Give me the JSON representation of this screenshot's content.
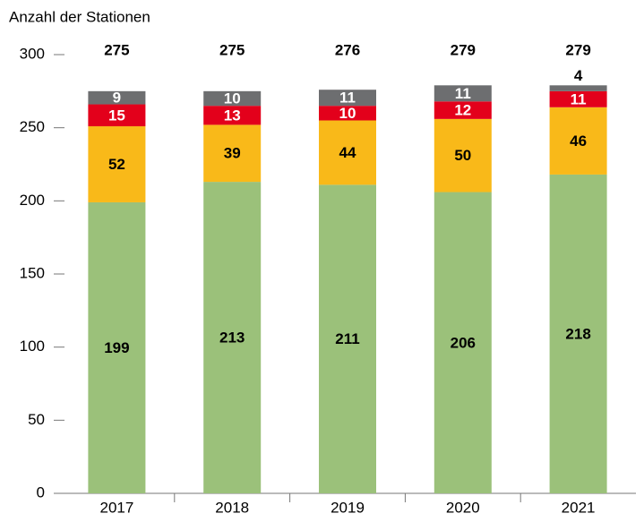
{
  "chart_data": {
    "type": "stacked_bar",
    "y_axis_label": "Anzahl der Stationen",
    "categories": [
      "2017",
      "2018",
      "2019",
      "2020",
      "2021"
    ],
    "series": [
      {
        "color": "#9bc17a",
        "label_color": "#000000",
        "values": [
          199,
          213,
          211,
          206,
          218
        ]
      },
      {
        "color": "#f9b919",
        "label_color": "#000000",
        "values": [
          52,
          39,
          44,
          50,
          46
        ]
      },
      {
        "color": "#e3001b",
        "label_color": "#ffffff",
        "values": [
          15,
          13,
          10,
          12,
          11
        ]
      },
      {
        "color": "#6d6e70",
        "label_color": "#ffffff",
        "values": [
          9,
          10,
          11,
          11,
          4
        ]
      }
    ],
    "totals": [
      275,
      275,
      276,
      279,
      279
    ],
    "ylim": [
      0,
      300
    ],
    "yticks": [
      0,
      50,
      100,
      150,
      200,
      250,
      300
    ],
    "grid": false
  }
}
